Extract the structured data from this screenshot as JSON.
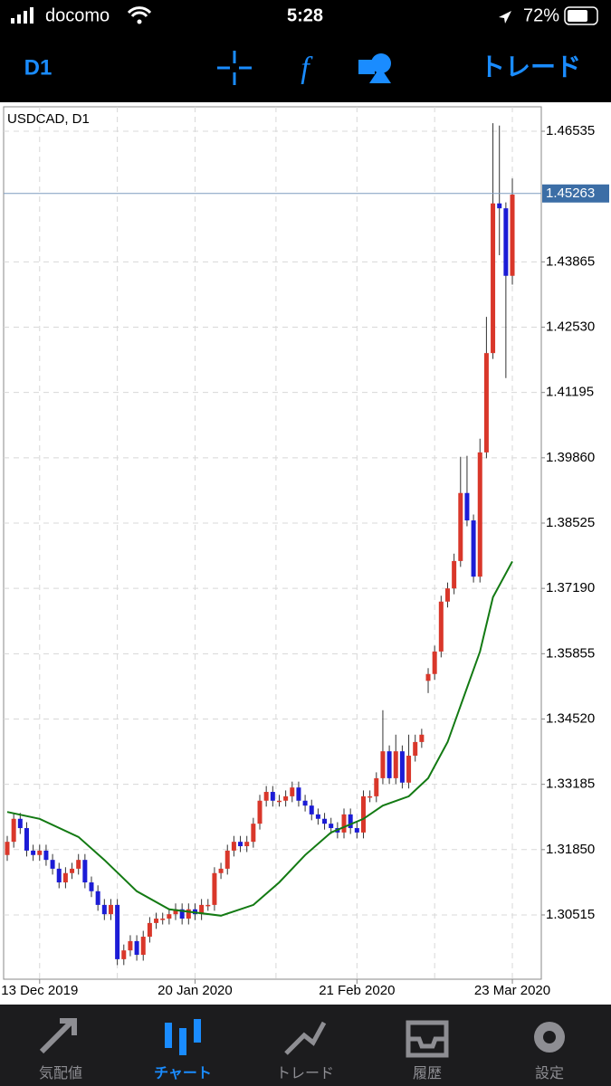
{
  "status_bar": {
    "carrier": "docomo",
    "time": "5:28",
    "battery": "72%"
  },
  "toolbar": {
    "timeframe": "D1",
    "trade": "トレード"
  },
  "chart_data": {
    "type": "candlestick",
    "title": "USDCAD, D1",
    "up_color": "#d9372a",
    "down_color": "#1c1cd6",
    "x": [
      0,
      1,
      2,
      3,
      4,
      5,
      6,
      7,
      8,
      9,
      10,
      11,
      12,
      13,
      14,
      15,
      16,
      17,
      18,
      19,
      20,
      21,
      22,
      23,
      24,
      25,
      26,
      27,
      28,
      29,
      30,
      31,
      32,
      33,
      34,
      35,
      36,
      37,
      38,
      39,
      40,
      41,
      42,
      43,
      44,
      45,
      46,
      47,
      48,
      49,
      50,
      51,
      52,
      53,
      54,
      55,
      56,
      57,
      58,
      59,
      60,
      61,
      62,
      63,
      64,
      65,
      66,
      67,
      68,
      69,
      70,
      71,
      72,
      73,
      74,
      75,
      76,
      77,
      78
    ],
    "open": [
      1.3174,
      1.3201,
      1.3248,
      1.3229,
      1.3183,
      1.3174,
      1.3183,
      1.3164,
      1.3146,
      1.3118,
      1.3137,
      1.3146,
      1.3164,
      1.3118,
      1.31,
      1.3072,
      1.3053,
      1.3072,
      1.2961,
      1.2979,
      1.2998,
      1.297,
      1.3007,
      1.3035,
      1.3044,
      1.3044,
      1.3053,
      1.3063,
      1.3044,
      1.3063,
      1.3053,
      1.3072,
      1.3072,
      1.3137,
      1.3146,
      1.3183,
      1.3201,
      1.3192,
      1.3201,
      1.3238,
      1.3285,
      1.3303,
      1.3285,
      1.3285,
      1.3294,
      1.3312,
      1.3285,
      1.3275,
      1.3257,
      1.3248,
      1.3238,
      1.3229,
      1.322,
      1.3257,
      1.3229,
      1.322,
      1.3294,
      1.3294,
      1.3331,
      1.3386,
      1.3331,
      1.3386,
      1.3322,
      1.3377,
      1.3405,
      1.353,
      1.3544,
      1.359,
      1.3692,
      1.3719,
      1.3775,
      1.3914,
      1.3858,
      1.3743,
      1.3997,
      1.42,
      1.4506,
      1.4496,
      1.4358
    ],
    "high": [
      1.3213,
      1.326,
      1.326,
      1.3241,
      1.3195,
      1.3195,
      1.3195,
      1.3176,
      1.3158,
      1.3149,
      1.3158,
      1.3176,
      1.3176,
      1.313,
      1.3112,
      1.3084,
      1.3084,
      1.3084,
      1.2991,
      1.301,
      1.301,
      1.3019,
      1.3047,
      1.3056,
      1.3056,
      1.3065,
      1.3075,
      1.3075,
      1.3075,
      1.3075,
      1.3084,
      1.3084,
      1.3149,
      1.3158,
      1.3195,
      1.3213,
      1.3213,
      1.3213,
      1.325,
      1.3297,
      1.3315,
      1.3315,
      1.3297,
      1.3306,
      1.3324,
      1.3324,
      1.3297,
      1.3287,
      1.3269,
      1.326,
      1.325,
      1.3241,
      1.3269,
      1.3269,
      1.3241,
      1.3306,
      1.3306,
      1.3343,
      1.347,
      1.3398,
      1.342,
      1.3398,
      1.342,
      1.342,
      1.3432,
      1.3556,
      1.3602,
      1.3704,
      1.3731,
      1.379,
      1.3988,
      1.399,
      1.387,
      1.4025,
      1.4274,
      1.467,
      1.4665,
      1.4508,
      1.4557
    ],
    "low": [
      1.3162,
      1.3189,
      1.3217,
      1.3171,
      1.3162,
      1.3162,
      1.3152,
      1.3134,
      1.3106,
      1.3106,
      1.3125,
      1.3134,
      1.3106,
      1.3088,
      1.306,
      1.3041,
      1.3041,
      1.2949,
      1.2949,
      1.2967,
      1.2958,
      1.2958,
      1.2995,
      1.3023,
      1.3032,
      1.3032,
      1.3041,
      1.3032,
      1.3032,
      1.3041,
      1.3041,
      1.306,
      1.306,
      1.3125,
      1.3134,
      1.3171,
      1.318,
      1.318,
      1.3189,
      1.3226,
      1.3273,
      1.3273,
      1.3273,
      1.3273,
      1.3282,
      1.3273,
      1.3263,
      1.3245,
      1.3236,
      1.3226,
      1.3217,
      1.3208,
      1.3208,
      1.3217,
      1.3208,
      1.3208,
      1.3282,
      1.3282,
      1.3319,
      1.3319,
      1.3319,
      1.331,
      1.331,
      1.3365,
      1.3393,
      1.3505,
      1.3532,
      1.3578,
      1.368,
      1.3707,
      1.3763,
      1.3846,
      1.3731,
      1.3731,
      1.3985,
      1.4188,
      1.44,
      1.4149,
      1.434
    ],
    "close": [
      1.3201,
      1.3248,
      1.3229,
      1.3183,
      1.3174,
      1.3183,
      1.3164,
      1.3146,
      1.3118,
      1.3137,
      1.3146,
      1.3164,
      1.3118,
      1.31,
      1.3072,
      1.3053,
      1.3072,
      1.2961,
      1.2979,
      1.2998,
      1.297,
      1.3007,
      1.3035,
      1.3044,
      1.3044,
      1.3053,
      1.3063,
      1.3044,
      1.3063,
      1.3053,
      1.3072,
      1.3072,
      1.3137,
      1.3146,
      1.3183,
      1.3201,
      1.3192,
      1.3201,
      1.3238,
      1.3285,
      1.3303,
      1.3285,
      1.3285,
      1.3294,
      1.3312,
      1.3285,
      1.3275,
      1.3257,
      1.3248,
      1.3238,
      1.3229,
      1.322,
      1.3257,
      1.3229,
      1.322,
      1.3294,
      1.3294,
      1.3331,
      1.3386,
      1.3331,
      1.3386,
      1.3322,
      1.3377,
      1.3405,
      1.342,
      1.3544,
      1.359,
      1.3692,
      1.3719,
      1.3775,
      1.3914,
      1.3858,
      1.3743,
      1.3997,
      1.42,
      1.4506,
      1.4496,
      1.4358,
      1.4524
    ],
    "ma": {
      "color": "#137a13",
      "x": [
        0,
        5,
        11,
        15,
        20,
        25,
        33,
        38,
        42,
        46,
        50,
        55,
        58,
        62,
        65,
        68,
        70,
        73,
        75,
        78
      ],
      "values": [
        1.3262,
        1.3248,
        1.3211,
        1.3164,
        1.31,
        1.3063,
        1.305,
        1.3072,
        1.3118,
        1.3174,
        1.322,
        1.3248,
        1.3275,
        1.3294,
        1.3331,
        1.3405,
        1.3479,
        1.359,
        1.3701,
        1.3774
      ]
    },
    "last_price": 1.45263,
    "xlim": [
      -0.56,
      82.47
    ],
    "ylim": [
      1.29201,
      1.47035
    ],
    "yticks": [
      1.46535,
      1.43865,
      {
        "value": 1.4253,
        "label": "1.42530"
      },
      1.41195,
      {
        "value": 1.3986,
        "label": "1.39860"
      },
      1.38525,
      {
        "value": 1.3719,
        "label": "1.37190"
      },
      1.35855,
      {
        "value": 1.3452,
        "label": "1.34520"
      },
      1.33185,
      {
        "value": 1.3185,
        "label": "1.31850"
      },
      1.30515
    ],
    "xticks": [
      {
        "value": 5,
        "label": "13 Dec 2019"
      },
      {
        "value": 29,
        "label": "20 Jan 2020"
      },
      {
        "value": 54,
        "label": "21 Feb 2020"
      },
      {
        "value": 78,
        "label": "23 Mar 2020"
      }
    ],
    "grid": true
  },
  "tabs": [
    {
      "label": "気配値"
    },
    {
      "label": "チャート"
    },
    {
      "label": "トレード"
    },
    {
      "label": "履歴"
    },
    {
      "label": "設定"
    }
  ]
}
